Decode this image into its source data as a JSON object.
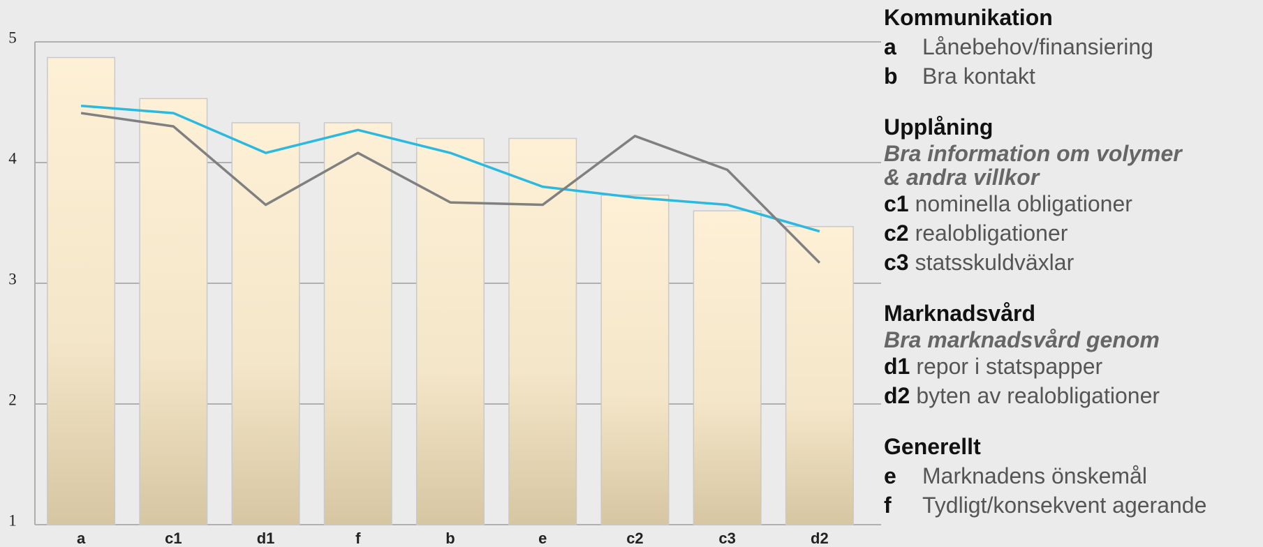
{
  "chart_data": {
    "type": "bar",
    "categories": [
      "a",
      "c1",
      "d1",
      "f",
      "b",
      "e",
      "c2",
      "c3",
      "d2"
    ],
    "series": [
      {
        "type": "bar",
        "color": "#fdf0d6",
        "values": [
          4.87,
          4.53,
          4.33,
          4.33,
          4.2,
          4.2,
          3.73,
          3.6,
          3.47
        ]
      },
      {
        "type": "line",
        "color": "#2bb9e0",
        "values": [
          4.47,
          4.41,
          4.08,
          4.27,
          4.08,
          3.8,
          3.71,
          3.65,
          3.43
        ]
      },
      {
        "type": "line",
        "color": "#808080",
        "values": [
          4.41,
          4.3,
          3.65,
          4.08,
          3.67,
          3.65,
          4.22,
          3.94,
          3.17
        ]
      }
    ],
    "ylim": [
      1,
      5
    ],
    "yticks": [
      1,
      2,
      3,
      4,
      5
    ],
    "grid": true
  },
  "key": [
    {
      "heading": "Kommunikation",
      "items": [
        {
          "code": "a",
          "text": "Lånebehov/finansiering"
        },
        {
          "code": "b",
          "text": "Bra kontakt"
        }
      ]
    },
    {
      "heading": "Upplåning",
      "subheading": [
        "Bra information om volymer",
        "& andra villkor"
      ],
      "items": [
        {
          "code": "c1",
          "text": "nominella obligationer"
        },
        {
          "code": "c2",
          "text": "realobligationer"
        },
        {
          "code": "c3",
          "text": "statsskuldväxlar"
        }
      ]
    },
    {
      "heading": "Marknadsvård",
      "subheading": [
        "Bra marknadsvård genom"
      ],
      "items": [
        {
          "code": "d1",
          "text": "repor i statspapper"
        },
        {
          "code": "d2",
          "text": "byten av realobligationer"
        }
      ]
    },
    {
      "heading": "Generellt",
      "items": [
        {
          "code": "e",
          "text": "Marknadens önskemål"
        },
        {
          "code": "f",
          "text": "Tydligt/konsekvent agerande"
        }
      ]
    }
  ]
}
